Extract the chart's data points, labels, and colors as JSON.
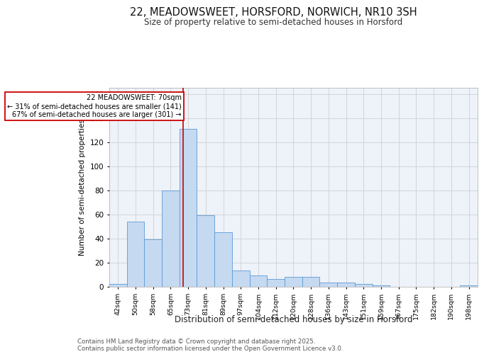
{
  "title_line1": "22, MEADOWSWEET, HORSFORD, NORWICH, NR10 3SH",
  "title_line2": "Size of property relative to semi-detached houses in Horsford",
  "xlabel": "Distribution of semi-detached houses by size in Horsford",
  "ylabel": "Number of semi-detached properties",
  "categories": [
    "42sqm",
    "50sqm",
    "58sqm",
    "65sqm",
    "73sqm",
    "81sqm",
    "89sqm",
    "97sqm",
    "104sqm",
    "112sqm",
    "120sqm",
    "128sqm",
    "136sqm",
    "143sqm",
    "151sqm",
    "159sqm",
    "167sqm",
    "175sqm",
    "182sqm",
    "190sqm",
    "198sqm"
  ],
  "values": [
    2,
    54,
    39,
    80,
    131,
    59,
    45,
    13,
    9,
    6,
    8,
    8,
    3,
    3,
    2,
    1,
    0,
    0,
    0,
    0,
    1
  ],
  "bar_color": "#c5d9f1",
  "bar_edge_color": "#5b9bd5",
  "grid_color": "#d0d0d0",
  "annotation_text": "22 MEADOWSWEET: 70sqm\n← 31% of semi-detached houses are smaller (141)\n67% of semi-detached houses are larger (301) →",
  "annotation_box_edge": "#cc0000",
  "vline_x_index": 3.72,
  "vline_color": "#cc0000",
  "ylim": [
    0,
    165
  ],
  "yticks": [
    0,
    20,
    40,
    60,
    80,
    100,
    120,
    140,
    160
  ],
  "footer_text": "Contains HM Land Registry data © Crown copyright and database right 2025.\nContains public sector information licensed under the Open Government Licence v3.0.",
  "background_color": "#eef2f9"
}
